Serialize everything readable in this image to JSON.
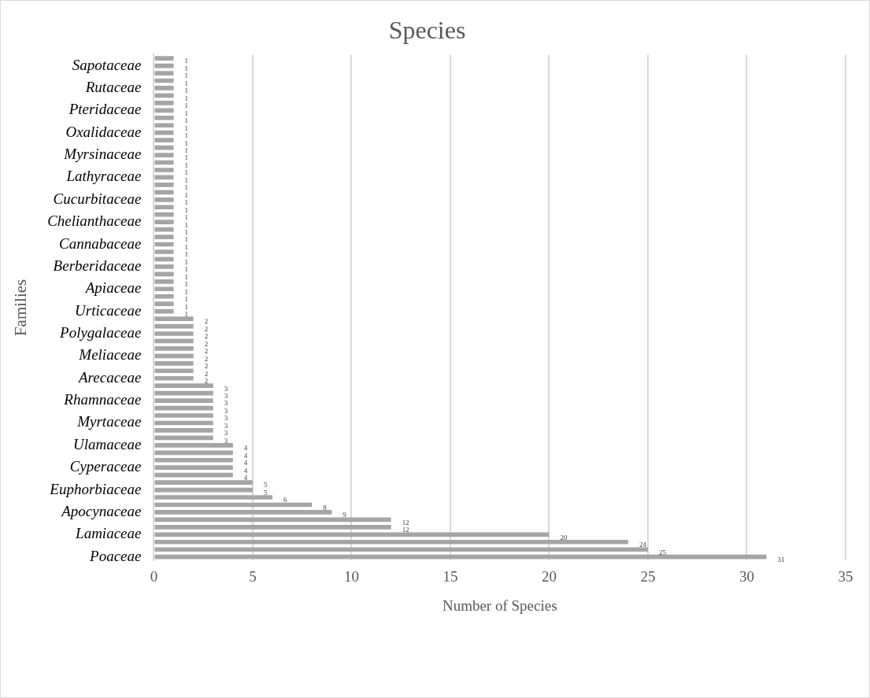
{
  "chart_data": {
    "type": "bar",
    "orientation": "horizontal",
    "title": "Species",
    "xlabel": "Number of Species",
    "ylabel": "Families",
    "categories": [
      null,
      "Sapotaceae",
      null,
      null,
      "Rutaceae",
      null,
      null,
      "Pteridaceae",
      null,
      null,
      "Oxalidaceae",
      null,
      null,
      "Myrsinaceae",
      null,
      null,
      "Lathyraceae",
      null,
      null,
      "Cucurbitaceae",
      null,
      null,
      "Chelianthaceae",
      null,
      null,
      "Cannabaceae",
      null,
      null,
      "Berberidaceae",
      null,
      null,
      "Apiaceae",
      null,
      null,
      "Urticaceae",
      null,
      null,
      "Polygalaceae",
      null,
      null,
      "Meliaceae",
      null,
      null,
      "Arecaceae",
      null,
      null,
      "Rhamnaceae",
      null,
      null,
      "Myrtaceae",
      null,
      null,
      "Ulamaceae",
      null,
      null,
      "Cyperaceae",
      null,
      null,
      "Euphorbiaceae",
      null,
      null,
      "Apocynaceae",
      null,
      null,
      "Lamiaceae",
      null,
      null,
      "Poaceae"
    ],
    "values": [
      1,
      1,
      1,
      1,
      1,
      1,
      1,
      1,
      1,
      1,
      1,
      1,
      1,
      1,
      1,
      1,
      1,
      1,
      1,
      1,
      1,
      1,
      1,
      1,
      1,
      1,
      1,
      1,
      1,
      1,
      1,
      1,
      1,
      1,
      1,
      2,
      2,
      2,
      2,
      2,
      2,
      2,
      2,
      2,
      3,
      3,
      3,
      3,
      3,
      3,
      3,
      3,
      4,
      4,
      4,
      4,
      4,
      5,
      5,
      6,
      8,
      9,
      12,
      12,
      20,
      24,
      25,
      31
    ],
    "color": "#a5a5a5",
    "xlim": [
      0,
      35
    ],
    "xticks": [
      0,
      5,
      10,
      15,
      20,
      25,
      30,
      35
    ],
    "grid": "x",
    "data_labels": true
  }
}
